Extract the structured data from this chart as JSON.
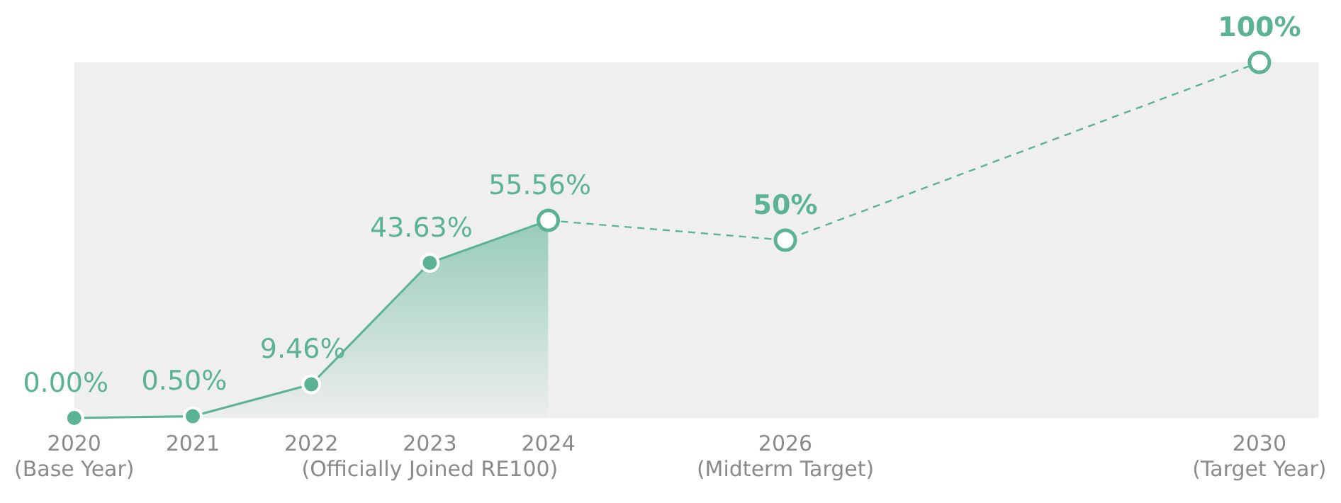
{
  "chart_data": {
    "type": "line",
    "xlim": [
      2020,
      2030.5
    ],
    "ylim": [
      0,
      100
    ],
    "xticks": [
      {
        "value": 2020,
        "label": "2020\n(Base Year)"
      },
      2021,
      2022,
      {
        "value": 2023,
        "label": "2023\n(Officially Joined RE100)"
      },
      2024,
      {
        "value": 2026,
        "label": "2026\n(Midterm Target)"
      },
      {
        "value": 2030,
        "label": "2030\n(Target Year)"
      }
    ],
    "tick_labels": "x",
    "grid": false,
    "legend": false,
    "marker": "circle",
    "series": [
      {
        "type": "area",
        "color": "#5bb393",
        "x": [
          2020,
          2021,
          2022,
          2023,
          2024
        ],
        "values": [
          0,
          0.5,
          9.46,
          43.63,
          55.56
        ],
        "value_labels": [
          "0.00%",
          "0.50%",
          "9.46%",
          "43.63%",
          "55.56%"
        ]
      },
      {
        "color": "#5bb393",
        "line_style": "dashed",
        "x": [
          2024,
          2026,
          2030
        ],
        "values": [
          55.56,
          50,
          100
        ],
        "value_labels": [
          null,
          "50%",
          "100%"
        ]
      }
    ]
  }
}
